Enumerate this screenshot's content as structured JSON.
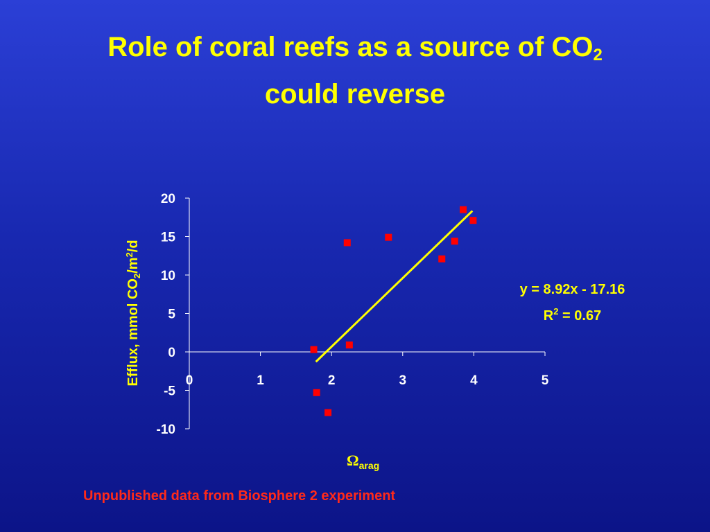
{
  "title": {
    "line1": "Role of coral reefs as a source of CO",
    "line1_sub": "2",
    "line2": "could reverse"
  },
  "footnote": "Unpublished data from Biosphere 2 experiment",
  "colors": {
    "title": "#ffff00",
    "axis": "#ffffff",
    "points": "#ff0000",
    "trendline": "#ffff00",
    "footnote": "#ff2a1a"
  },
  "chart_data": {
    "type": "scatter",
    "xlabel": {
      "symbol": "Ω",
      "sub": "arag"
    },
    "ylabel": {
      "pre": "Efflux, mmol CO",
      "sub": "2",
      "mid": "/m",
      "sup": "2",
      "post": "/d"
    },
    "xlim": [
      0,
      5
    ],
    "ylim": [
      -10,
      20
    ],
    "x_ticks": [
      "0",
      "1",
      "2",
      "3",
      "4",
      "5"
    ],
    "y_ticks": [
      "20",
      "15",
      "10",
      "5",
      "0",
      "-5",
      "-10"
    ],
    "grid": false,
    "points": [
      {
        "x": 1.75,
        "y": 0.3
      },
      {
        "x": 1.79,
        "y": -5.3
      },
      {
        "x": 1.95,
        "y": -7.9
      },
      {
        "x": 2.22,
        "y": 14.2
      },
      {
        "x": 2.25,
        "y": 0.9
      },
      {
        "x": 2.8,
        "y": 14.9
      },
      {
        "x": 3.55,
        "y": 12.1
      },
      {
        "x": 3.73,
        "y": 14.4
      },
      {
        "x": 3.85,
        "y": 18.5
      },
      {
        "x": 3.99,
        "y": 17.1
      }
    ],
    "trendline": {
      "slope": 8.92,
      "intercept": -17.16,
      "x_range": [
        1.78,
        3.98
      ]
    },
    "equation_label": "y = 8.92x - 17.16",
    "r2_label": {
      "pre": "R",
      "sup": "2",
      "post": " = 0.67"
    }
  }
}
